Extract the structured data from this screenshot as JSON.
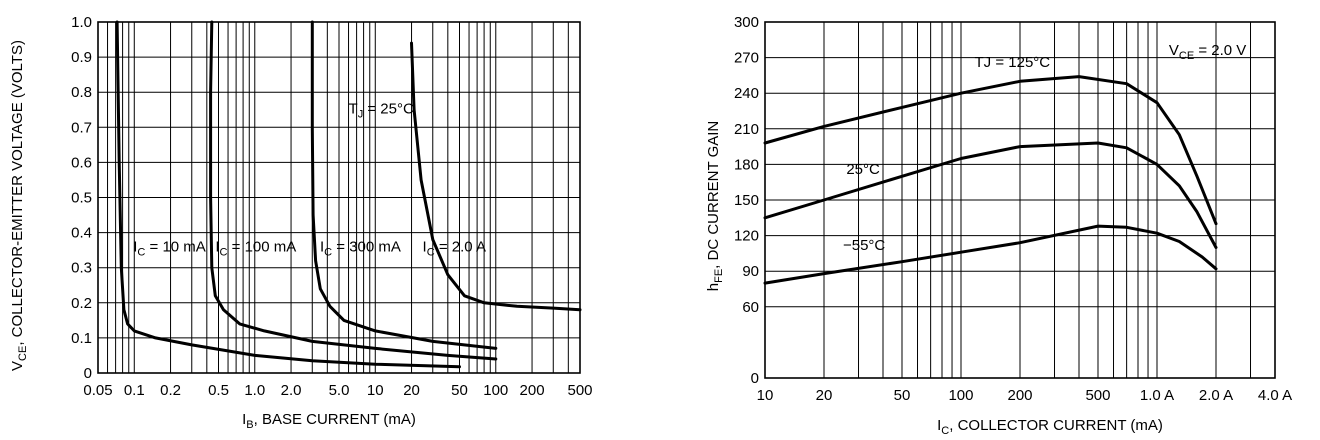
{
  "chart_data": [
    {
      "type": "line",
      "xlabel": "I_B, BASE CURRENT (mA)",
      "xlabel_main": "I",
      "xlabel_sub": "B",
      "xlabel_rest": ", BASE CURRENT (mA)",
      "ylabel": "V_CE, COLLECTOR-EMITTER VOLTAGE (VOLTS)",
      "ylabel_main": "V",
      "ylabel_sub": "CE",
      "ylabel_rest": ", COLLECTOR-EMITTER VOLTAGE (VOLTS)",
      "x_scale": "log",
      "xlim": [
        0.05,
        500
      ],
      "ylim": [
        0,
        1.0
      ],
      "grid": true,
      "x_ticks": [
        0.05,
        0.1,
        0.2,
        0.5,
        1.0,
        2.0,
        5.0,
        10,
        20,
        50,
        100,
        200,
        500
      ],
      "x_tick_labels": [
        "0.05",
        "0.1",
        "0.2",
        "0.5",
        "1.0",
        "2.0",
        "5.0",
        "10",
        "20",
        "50",
        "100",
        "200",
        "500"
      ],
      "y_ticks": [
        0,
        0.1,
        0.2,
        0.3,
        0.4,
        0.5,
        0.6,
        0.7,
        0.8,
        0.9,
        1.0
      ],
      "y_tick_labels": [
        "0",
        "0.1",
        "0.2",
        "0.3",
        "0.4",
        "0.5",
        "0.6",
        "0.7",
        "0.8",
        "0.9",
        "1.0"
      ],
      "series": [
        {
          "name": "I_C = 10 mA",
          "label_main": "I",
          "label_sub": "C",
          "label_rest": " = 10 mA",
          "x": [
            0.072,
            0.075,
            0.078,
            0.082,
            0.088,
            0.1,
            0.15,
            0.3,
            1,
            3,
            10,
            50
          ],
          "y": [
            1.0,
            0.6,
            0.3,
            0.18,
            0.14,
            0.12,
            0.1,
            0.08,
            0.05,
            0.035,
            0.025,
            0.018
          ]
        },
        {
          "name": "I_C = 100 mA",
          "label_main": "I",
          "label_sub": "C",
          "label_rest": " = 100 mA",
          "x": [
            0.44,
            0.43,
            0.43,
            0.44,
            0.47,
            0.55,
            0.75,
            1.2,
            3,
            10,
            40,
            100
          ],
          "y": [
            1.0,
            0.8,
            0.5,
            0.3,
            0.22,
            0.18,
            0.14,
            0.12,
            0.09,
            0.07,
            0.05,
            0.04
          ]
        },
        {
          "name": "I_C = 300 mA",
          "label_main": "I",
          "label_sub": "C",
          "label_rest": " = 300 mA",
          "x": [
            3.0,
            3.0,
            3.05,
            3.2,
            3.5,
            4.2,
            5.5,
            10,
            30,
            100
          ],
          "y": [
            1.0,
            0.7,
            0.45,
            0.32,
            0.24,
            0.19,
            0.15,
            0.12,
            0.09,
            0.07
          ]
        },
        {
          "name": "I_C = 2.0 A",
          "label_main": "I",
          "label_sub": "C",
          "label_rest": " = 2.0 A",
          "x": [
            20,
            21,
            24,
            30,
            40,
            55,
            80,
            150,
            300,
            500
          ],
          "y": [
            0.94,
            0.75,
            0.55,
            0.38,
            0.28,
            0.22,
            0.2,
            0.19,
            0.185,
            0.18
          ]
        }
      ],
      "annotations": [
        "T_J = 25°C"
      ],
      "annotation_main": "T",
      "annotation_sub": "J",
      "annotation_rest": " = 25°C"
    },
    {
      "type": "line",
      "xlabel": "I_C, COLLECTOR CURRENT (mA)",
      "xlabel_main": "I",
      "xlabel_sub": "C",
      "xlabel_rest": ", COLLECTOR CURRENT (mA)",
      "ylabel": "h_FE, DC CURRENT GAIN",
      "ylabel_main": "h",
      "ylabel_sub": "FE",
      "ylabel_rest": ", DC CURRENT GAIN",
      "x_scale": "log",
      "xlim": [
        10,
        4000
      ],
      "ylim": [
        0,
        300
      ],
      "grid": true,
      "x_ticks": [
        10,
        20,
        50,
        100,
        200,
        500,
        1000,
        2000,
        4000
      ],
      "x_tick_labels": [
        "10",
        "20",
        "50",
        "100",
        "200",
        "500",
        "1.0 A",
        "2.0 A",
        "4.0 A"
      ],
      "y_ticks": [
        0,
        60,
        90,
        120,
        150,
        180,
        210,
        240,
        270,
        300
      ],
      "y_tick_labels": [
        "0",
        "60",
        "90",
        "120",
        "150",
        "180",
        "210",
        "240",
        "270",
        "300"
      ],
      "series": [
        {
          "name": "TJ = 125°C",
          "label": "TJ = 125°C",
          "x": [
            10,
            20,
            50,
            100,
            200,
            400,
            700,
            1000,
            1300,
            1600,
            2000
          ],
          "y": [
            198,
            212,
            228,
            240,
            250,
            254,
            248,
            232,
            205,
            170,
            130
          ]
        },
        {
          "name": "25°C",
          "label": "25°C",
          "x": [
            10,
            20,
            50,
            100,
            200,
            500,
            700,
            1000,
            1300,
            1600,
            2000
          ],
          "y": [
            135,
            150,
            170,
            185,
            195,
            198,
            194,
            180,
            162,
            140,
            110
          ]
        },
        {
          "name": "−55°C",
          "label": "−55°C",
          "x": [
            10,
            20,
            50,
            100,
            200,
            500,
            700,
            1000,
            1300,
            1700,
            2000
          ],
          "y": [
            80,
            88,
            98,
            106,
            114,
            128,
            127,
            122,
            115,
            102,
            92
          ]
        }
      ],
      "annotations": [
        "V_CE = 2.0 V"
      ],
      "annotation_main": "V",
      "annotation_sub": "CE",
      "annotation_rest": " = 2.0 V"
    }
  ]
}
